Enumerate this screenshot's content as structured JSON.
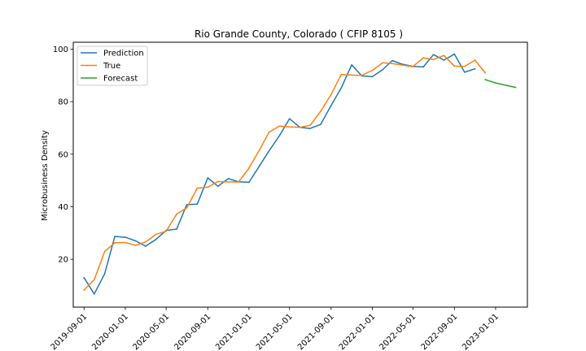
{
  "chart_data": {
    "type": "line",
    "title": "Rio Grande County, Colorado ( CFIP 8105 )",
    "xlabel": "",
    "ylabel": "Microbusiness Density",
    "xlim": [
      "2019-07-31",
      "2023-04-05"
    ],
    "ylim": [
      1.8,
      102.6
    ],
    "x_ticks": [
      "2019-09-01",
      "2020-01-01",
      "2020-05-01",
      "2020-09-01",
      "2021-01-01",
      "2021-05-01",
      "2021-09-01",
      "2022-01-01",
      "2022-05-01",
      "2022-09-01",
      "2023-01-01"
    ],
    "y_ticks": [
      20,
      40,
      60,
      80,
      100
    ],
    "grid": false,
    "legend": "top-left",
    "series": [
      {
        "name": "Prediction",
        "color": "#1f77b4",
        "x": [
          "2019-09-01",
          "2019-10-01",
          "2019-11-01",
          "2019-12-01",
          "2020-01-01",
          "2020-02-01",
          "2020-03-01",
          "2020-04-01",
          "2020-05-01",
          "2020-06-01",
          "2020-07-01",
          "2020-08-01",
          "2020-09-01",
          "2020-10-01",
          "2020-11-01",
          "2020-12-01",
          "2021-01-01",
          "2021-02-01",
          "2021-03-01",
          "2021-04-01",
          "2021-05-01",
          "2021-06-01",
          "2021-07-01",
          "2021-08-01",
          "2021-09-01",
          "2021-10-01",
          "2021-11-01",
          "2021-12-01",
          "2022-01-01",
          "2022-02-01",
          "2022-03-01",
          "2022-04-01",
          "2022-05-01",
          "2022-06-01",
          "2022-07-01",
          "2022-08-01",
          "2022-09-01",
          "2022-10-01",
          "2022-11-01"
        ],
        "values": [
          13,
          6.8,
          14.5,
          28.7,
          28.4,
          27,
          25,
          27.6,
          31,
          31.5,
          40.8,
          41,
          51,
          47.8,
          50.7,
          49.5,
          49.3,
          55.5,
          61.2,
          67,
          73.5,
          70.2,
          69.8,
          71.3,
          78.5,
          85.2,
          94,
          89.8,
          89.5,
          92.2,
          95.6,
          94.2,
          93.4,
          93.2,
          97.9,
          95.8,
          98.1,
          91.2,
          92.5
        ]
      },
      {
        "name": "True",
        "color": "#ff7f0e",
        "x": [
          "2019-09-01",
          "2019-10-01",
          "2019-11-01",
          "2019-12-01",
          "2020-01-01",
          "2020-02-01",
          "2020-03-01",
          "2020-04-01",
          "2020-05-01",
          "2020-06-01",
          "2020-07-01",
          "2020-08-01",
          "2020-09-01",
          "2020-10-01",
          "2020-11-01",
          "2020-12-01",
          "2021-01-01",
          "2021-02-01",
          "2021-03-01",
          "2021-04-01",
          "2021-05-01",
          "2021-06-01",
          "2021-07-01",
          "2021-08-01",
          "2021-09-01",
          "2021-10-01",
          "2021-11-01",
          "2021-12-01",
          "2022-01-01",
          "2022-02-01",
          "2022-03-01",
          "2022-04-01",
          "2022-05-01",
          "2022-06-01",
          "2022-07-01",
          "2022-08-01",
          "2022-09-01",
          "2022-10-01",
          "2022-11-01",
          "2022-12-01"
        ],
        "values": [
          8.3,
          12.2,
          23,
          26.3,
          26.4,
          25.3,
          26.6,
          29.5,
          30.7,
          37.2,
          39.6,
          47.1,
          47.4,
          49.6,
          49.4,
          49.4,
          54.7,
          61.6,
          68.3,
          70.7,
          70.4,
          70.2,
          71,
          76.3,
          82.7,
          90.3,
          90.1,
          90,
          91.9,
          94.8,
          94.5,
          93.9,
          93.3,
          96.7,
          96,
          97.6,
          93.5,
          93.4,
          95.8,
          91
        ]
      },
      {
        "name": "Forecast",
        "color": "#2ca02c",
        "x": [
          "2022-12-01",
          "2023-01-01",
          "2023-02-01",
          "2023-03-01"
        ],
        "values": [
          88.4,
          87.1,
          86.2,
          85.4
        ]
      }
    ]
  }
}
